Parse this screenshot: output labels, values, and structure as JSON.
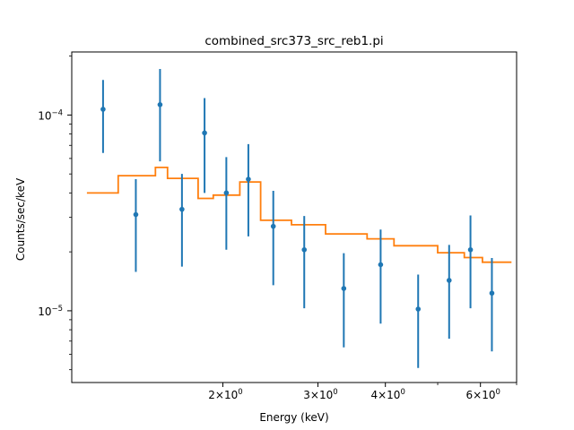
{
  "chart_data": {
    "type": "scatter",
    "title": "combined_src373_src_reb1.pi",
    "xlabel": "Energy (keV)",
    "ylabel": "Counts/sec/keV",
    "xscale": "log",
    "yscale": "log",
    "xlim": [
      1.05,
      7.0
    ],
    "ylim": [
      4.3e-06,
      0.00021
    ],
    "grid": false,
    "x_ticks": [
      {
        "value": 2,
        "label": "2×10",
        "exp": "0"
      },
      {
        "value": 3,
        "label": "3×10",
        "exp": "0"
      },
      {
        "value": 4,
        "label": "4×10",
        "exp": "0"
      },
      {
        "value": 6,
        "label": "6×10",
        "exp": "0"
      }
    ],
    "y_ticks": [
      {
        "value": 1e-05,
        "label": "10",
        "exp": "−5"
      },
      {
        "value": 0.0001,
        "label": "10",
        "exp": "−4"
      }
    ],
    "data_points": {
      "color": "#1f77b4",
      "points": [
        {
          "x": 1.2,
          "y": 0.000107,
          "ylo": 6.4e-05,
          "yhi": 0.000151
        },
        {
          "x": 1.38,
          "y": 3.1e-05,
          "ylo": 1.58e-05,
          "yhi": 4.7e-05
        },
        {
          "x": 1.53,
          "y": 0.000113,
          "ylo": 5.8e-05,
          "yhi": 0.000172
        },
        {
          "x": 1.68,
          "y": 3.3e-05,
          "ylo": 1.68e-05,
          "yhi": 5e-05
        },
        {
          "x": 1.85,
          "y": 8.1e-05,
          "ylo": 4e-05,
          "yhi": 0.000122
        },
        {
          "x": 2.03,
          "y": 4e-05,
          "ylo": 2.05e-05,
          "yhi": 6.1e-05
        },
        {
          "x": 2.23,
          "y": 4.7e-05,
          "ylo": 2.4e-05,
          "yhi": 7.1e-05
        },
        {
          "x": 2.48,
          "y": 2.7e-05,
          "ylo": 1.35e-05,
          "yhi": 4.1e-05
        },
        {
          "x": 2.83,
          "y": 2.05e-05,
          "ylo": 1.03e-05,
          "yhi": 3.05e-05
        },
        {
          "x": 3.35,
          "y": 1.3e-05,
          "ylo": 6.5e-06,
          "yhi": 1.97e-05
        },
        {
          "x": 3.92,
          "y": 1.72e-05,
          "ylo": 8.6e-06,
          "yhi": 2.6e-05
        },
        {
          "x": 4.6,
          "y": 1.02e-05,
          "ylo": 5.1e-06,
          "yhi": 1.53e-05
        },
        {
          "x": 5.25,
          "y": 1.43e-05,
          "ylo": 7.2e-06,
          "yhi": 2.17e-05
        },
        {
          "x": 5.75,
          "y": 2.05e-05,
          "ylo": 1.03e-05,
          "yhi": 3.07e-05
        },
        {
          "x": 6.3,
          "y": 1.23e-05,
          "ylo": 6.2e-06,
          "yhi": 1.86e-05
        }
      ]
    },
    "model": {
      "color": "#ff7f0e",
      "steps": [
        {
          "x0": 1.12,
          "x1": 1.28,
          "y": 4e-05
        },
        {
          "x0": 1.28,
          "x1": 1.5,
          "y": 4.9e-05
        },
        {
          "x0": 1.5,
          "x1": 1.58,
          "y": 5.4e-05
        },
        {
          "x0": 1.58,
          "x1": 1.8,
          "y": 4.75e-05
        },
        {
          "x0": 1.8,
          "x1": 1.92,
          "y": 3.75e-05
        },
        {
          "x0": 1.92,
          "x1": 2.15,
          "y": 3.9e-05
        },
        {
          "x0": 2.15,
          "x1": 2.35,
          "y": 4.55e-05
        },
        {
          "x0": 2.35,
          "x1": 2.68,
          "y": 2.9e-05
        },
        {
          "x0": 2.68,
          "x1": 3.1,
          "y": 2.75e-05
        },
        {
          "x0": 3.1,
          "x1": 3.7,
          "y": 2.47e-05
        },
        {
          "x0": 3.7,
          "x1": 4.15,
          "y": 2.33e-05
        },
        {
          "x0": 4.15,
          "x1": 5.0,
          "y": 2.15e-05
        },
        {
          "x0": 5.0,
          "x1": 5.6,
          "y": 1.98e-05
        },
        {
          "x0": 5.6,
          "x1": 6.05,
          "y": 1.87e-05
        },
        {
          "x0": 6.05,
          "x1": 6.85,
          "y": 1.77e-05
        }
      ]
    }
  }
}
